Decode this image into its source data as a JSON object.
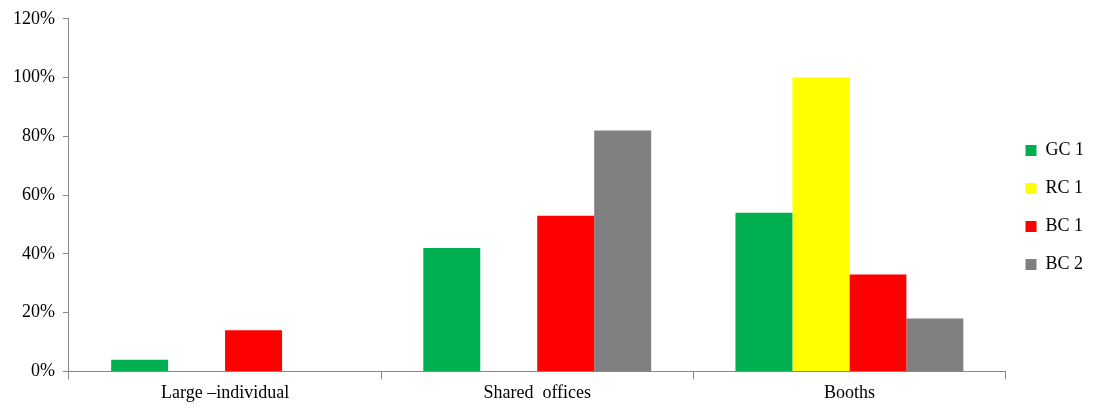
{
  "chart_data": {
    "type": "bar",
    "categories": [
      "Large –individual",
      "Shared  offices",
      "Booths"
    ],
    "series": [
      {
        "name": "GC 1",
        "color": "#00b050",
        "values": [
          4,
          42,
          54
        ]
      },
      {
        "name": "RC 1",
        "color": "#ffff00",
        "values": [
          0,
          0,
          100
        ]
      },
      {
        "name": "BC 1",
        "color": "#ff0000",
        "values": [
          14,
          53,
          33
        ]
      },
      {
        "name": "BC 2",
        "color": "#808080",
        "values": [
          0,
          82,
          18
        ]
      }
    ],
    "ylim": [
      0,
      120
    ],
    "yticks": [
      {
        "value": 0,
        "label": "0%"
      },
      {
        "value": 20,
        "label": "20%"
      },
      {
        "value": 40,
        "label": "40%"
      },
      {
        "value": 60,
        "label": "60%"
      },
      {
        "value": 80,
        "label": "80%"
      },
      {
        "value": 100,
        "label": "100%"
      },
      {
        "value": 120,
        "label": "120%"
      }
    ],
    "grid": false,
    "legend": "right"
  }
}
